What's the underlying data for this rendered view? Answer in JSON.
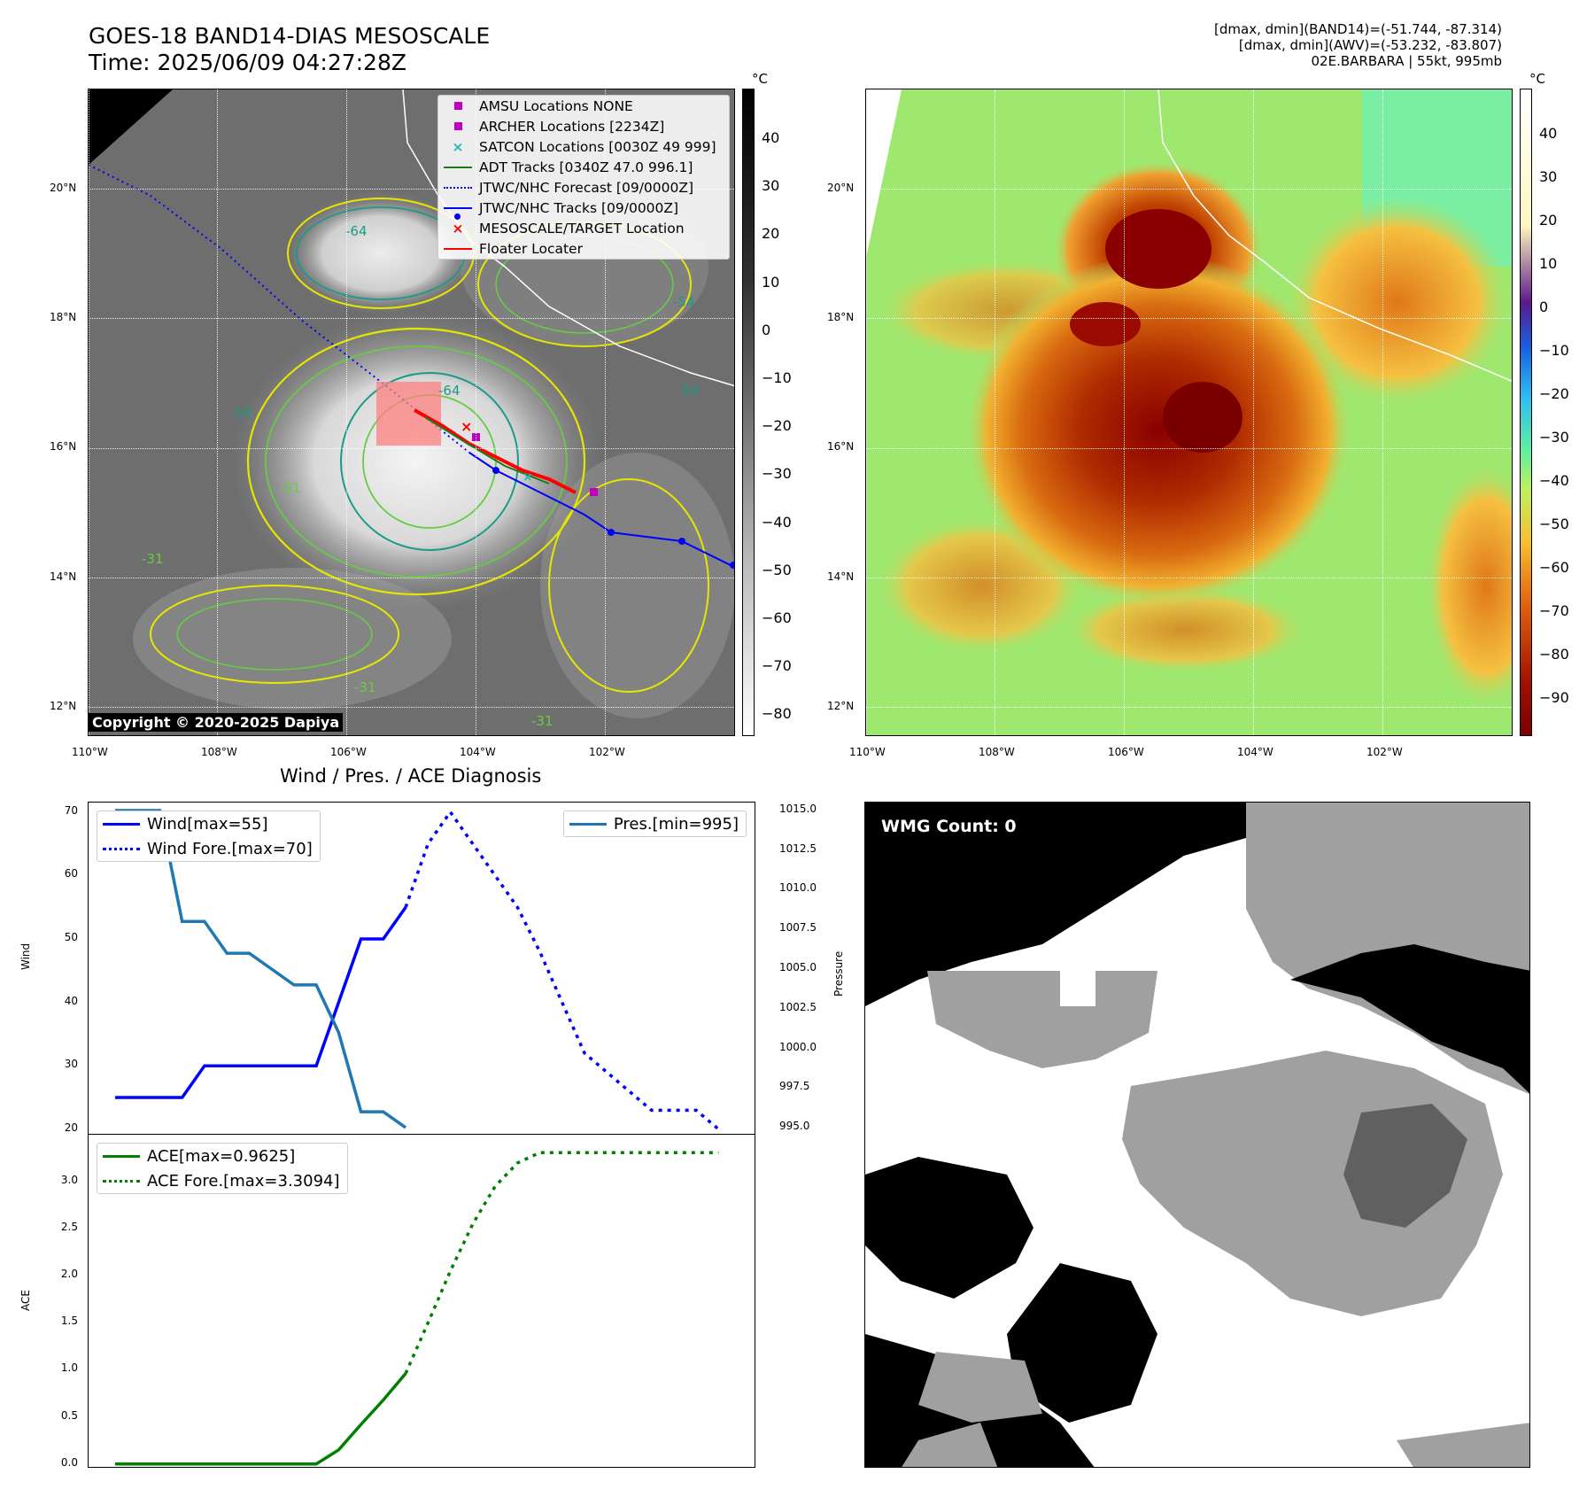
{
  "header": {
    "title_line1": "GOES-18 BAND14-DIAS MESOSCALE",
    "title_line2": "Time: 2025/06/09 04:27:28Z",
    "info_line1": "[dmax, dmin](BAND14)=(-51.744, -87.314)",
    "info_line2": "[dmax, dmin](AWV)=(-53.232, -83.807)",
    "info_line3": "02E.BARBARA | 55kt, 995mb"
  },
  "map_axes": {
    "lat_ticks": [
      "20°N",
      "18°N",
      "16°N",
      "14°N",
      "12°N"
    ],
    "lon_ticks": [
      "110°W",
      "108°W",
      "106°W",
      "104°W",
      "102°W"
    ]
  },
  "ir_panel": {
    "colorbar_unit": "°C",
    "colorbar_ticks": [
      "40",
      "30",
      "20",
      "10",
      "0",
      "−10",
      "−20",
      "−30",
      "−40",
      "−50",
      "−60",
      "−70",
      "−80"
    ],
    "legend": [
      {
        "label": "AMSU Locations NONE",
        "symbol": "square",
        "color": "#c000c0"
      },
      {
        "label": "ARCHER Locations [2234Z]",
        "symbol": "square",
        "color": "#c000c0"
      },
      {
        "label": "SATCON Locations [0030Z 49 999]",
        "symbol": "x",
        "color": "#20b8b8"
      },
      {
        "label": "ADT Tracks [0340Z 47.0 996.1]",
        "symbol": "line",
        "color": "#1a7a1a"
      },
      {
        "label": "JTWC/NHC Forecast [09/0000Z]",
        "symbol": "dotted",
        "color": "#0000ff"
      },
      {
        "label": "JTWC/NHC Tracks [09/0000Z]",
        "symbol": "line-dot",
        "color": "#0000ff"
      },
      {
        "label": "MESOSCALE/TARGET Location",
        "symbol": "x",
        "color": "#ff0000"
      },
      {
        "label": "Floater Locater",
        "symbol": "line",
        "color": "#ff0000"
      }
    ],
    "contour_labels": [
      "-64",
      "-54",
      "-54",
      "-54",
      "-31",
      "-31",
      "-31",
      "-31",
      "-64"
    ],
    "copyright": "Copyright © 2020-2025 Dapiya"
  },
  "awv_panel": {
    "colorbar_unit": "°C",
    "colorbar_ticks": [
      "40",
      "30",
      "20",
      "10",
      "0",
      "−10",
      "−20",
      "−30",
      "−40",
      "−50",
      "−60",
      "−70",
      "−80",
      "−90"
    ]
  },
  "wmg_panel": {
    "label": "WMG Count: 0"
  },
  "chart_data": [
    {
      "type": "line",
      "title": "Wind / Pres. / ACE Diagnosis",
      "ylabel": "Wind",
      "ylabel_right": "Pressure",
      "ylim": [
        19,
        71.5
      ],
      "ylim_right": [
        994.5,
        1015.5
      ],
      "y_ticks": [
        "70",
        "60",
        "50",
        "40",
        "30",
        "20"
      ],
      "y_ticks_right": [
        "1015.0",
        "1012.5",
        "1010.0",
        "1007.5",
        "1005.0",
        "1002.5",
        "1000.0",
        "997.5",
        "995.0"
      ],
      "xlim": [
        0,
        27.5
      ],
      "series": [
        {
          "name": "Wind[max=55]",
          "axis": "left",
          "style": "solid",
          "color": "#0000ff",
          "x": [
            0,
            1,
            2,
            3,
            4,
            5,
            6,
            7,
            8,
            9,
            10,
            11,
            12,
            13
          ],
          "y": [
            25,
            25,
            25,
            25,
            30,
            30,
            30,
            30,
            30,
            30,
            40,
            50,
            50,
            55
          ]
        },
        {
          "name": "Wind Fore.[max=70]",
          "axis": "left",
          "style": "dotted",
          "color": "#0000ff",
          "x": [
            13,
            14,
            15,
            16,
            17,
            18,
            19,
            20,
            21,
            22,
            23,
            24,
            25,
            26,
            27
          ],
          "y": [
            55,
            65,
            70,
            65,
            60,
            55,
            48,
            40,
            32,
            29,
            26,
            23,
            23,
            23,
            20
          ]
        },
        {
          "name": "Pres.[min=995]",
          "axis": "right",
          "style": "solid",
          "color": "#1f77b4",
          "x": [
            0,
            1,
            2,
            3,
            4,
            5,
            6,
            7,
            8,
            9,
            10,
            11,
            12,
            13
          ],
          "y": [
            1015,
            1015,
            1015,
            1008,
            1008,
            1006,
            1006,
            1005,
            1004,
            1004,
            1001,
            996,
            996,
            995
          ]
        }
      ]
    },
    {
      "type": "line",
      "ylabel": "ACE",
      "ylim": [
        -0.05,
        3.5
      ],
      "y_ticks": [
        "3.0",
        "2.5",
        "2.0",
        "1.5",
        "1.0",
        "0.5",
        "0.0"
      ],
      "xlim": [
        0,
        27.5
      ],
      "series": [
        {
          "name": "ACE[max=0.9625]",
          "style": "solid",
          "color": "#008000",
          "x": [
            0,
            1,
            2,
            3,
            4,
            5,
            6,
            7,
            8,
            9,
            10,
            11,
            12,
            13
          ],
          "y": [
            0,
            0,
            0,
            0,
            0,
            0,
            0,
            0,
            0,
            0,
            0.15,
            0.42,
            0.68,
            0.9625
          ]
        },
        {
          "name": "ACE Fore.[max=3.3094]",
          "style": "dotted",
          "color": "#008000",
          "x": [
            13,
            14,
            15,
            16,
            17,
            18,
            19,
            20,
            21,
            22,
            23,
            24,
            25,
            26,
            27
          ],
          "y": [
            0.9625,
            1.5,
            2.05,
            2.55,
            2.95,
            3.2,
            3.31,
            3.31,
            3.31,
            3.31,
            3.31,
            3.31,
            3.31,
            3.31,
            3.31
          ]
        }
      ]
    }
  ]
}
